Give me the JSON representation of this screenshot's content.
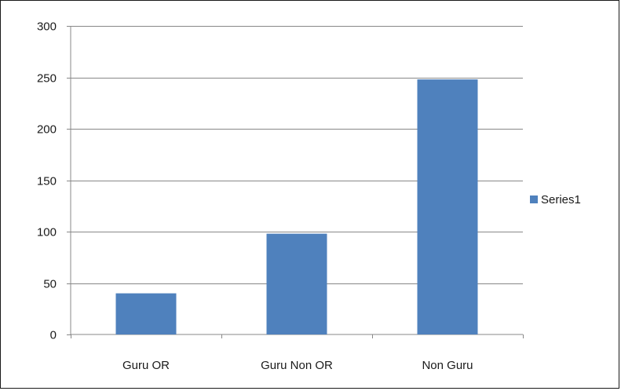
{
  "chart_data": {
    "type": "bar",
    "categories": [
      "Guru OR",
      "Guru Non OR",
      "Non Guru"
    ],
    "series": [
      {
        "name": "Series1",
        "values": [
          40,
          98,
          248
        ],
        "color": "#4f81bd"
      }
    ],
    "ylim": [
      0,
      300
    ],
    "yticks": [
      0,
      50,
      100,
      150,
      200,
      250,
      300
    ],
    "grid": true,
    "legend": "right",
    "title": "",
    "xlabel": "",
    "ylabel": ""
  }
}
